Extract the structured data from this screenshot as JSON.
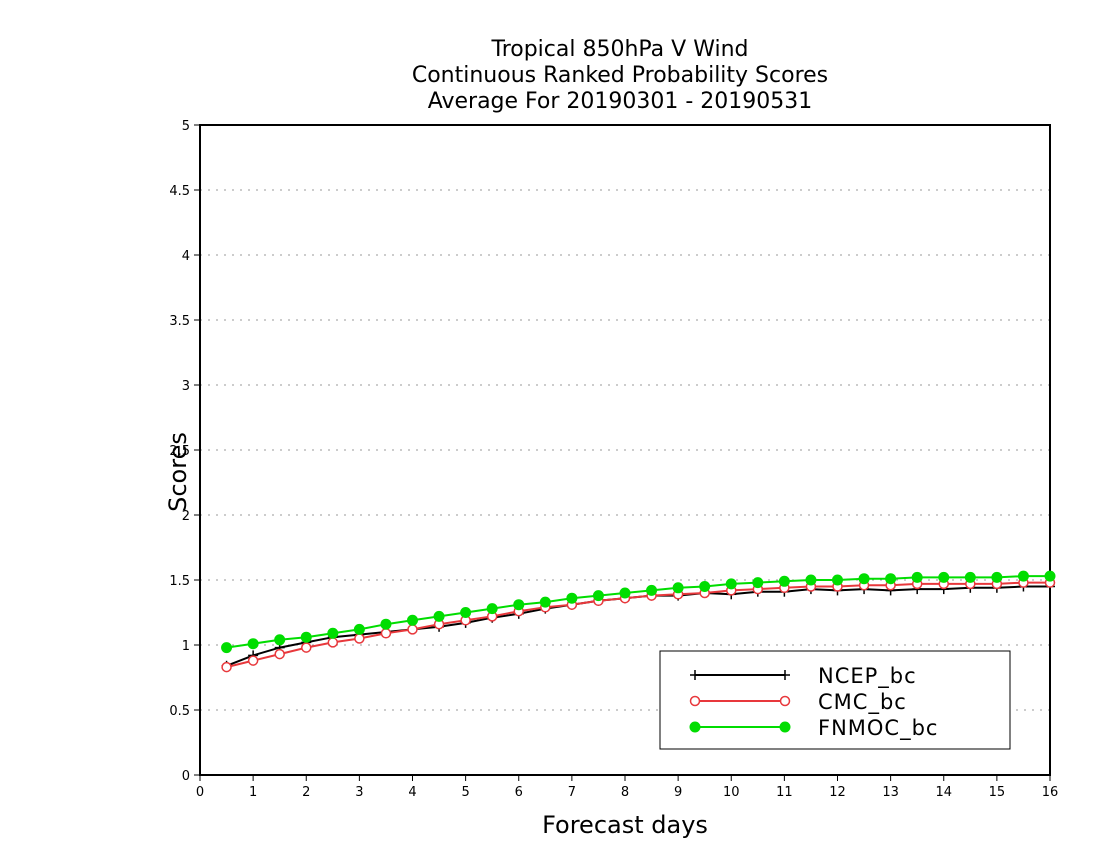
{
  "chart_data": {
    "type": "line",
    "title": [
      "Tropical 850hPa V Wind",
      "Continuous Ranked Probability Scores",
      "Average For 20190301 - 20190531"
    ],
    "xlabel": "Forecast days",
    "ylabel": "Scores",
    "xlim": [
      0,
      16
    ],
    "ylim": [
      0,
      5
    ],
    "xticks": [
      "0",
      "1",
      "2",
      "3",
      "4",
      "5",
      "6",
      "7",
      "8",
      "9",
      "10",
      "11",
      "12",
      "13",
      "14",
      "15",
      "16"
    ],
    "yticks": [
      "0",
      "0.5",
      "1",
      "1.5",
      "2",
      "2.5",
      "3",
      "3.5",
      "4",
      "4.5",
      "5"
    ],
    "grid": true,
    "legend_position": "bottom-right",
    "x": [
      0.5,
      1,
      1.5,
      2,
      2.5,
      3,
      3.5,
      4,
      4.5,
      5,
      5.5,
      6,
      6.5,
      7,
      7.5,
      8,
      8.5,
      9,
      9.5,
      10,
      10.5,
      11,
      11.5,
      12,
      12.5,
      13,
      13.5,
      14,
      14.5,
      15,
      15.5,
      16
    ],
    "series": [
      {
        "name": "NCEP_bc",
        "color": "#000000",
        "marker": "plus",
        "values": [
          0.84,
          0.92,
          0.98,
          1.02,
          1.06,
          1.08,
          1.1,
          1.12,
          1.14,
          1.17,
          1.21,
          1.24,
          1.28,
          1.31,
          1.34,
          1.36,
          1.38,
          1.38,
          1.4,
          1.39,
          1.41,
          1.41,
          1.43,
          1.42,
          1.43,
          1.42,
          1.43,
          1.43,
          1.44,
          1.44,
          1.45,
          1.45
        ]
      },
      {
        "name": "CMC_bc",
        "color": "#e8383c",
        "marker": "open-circle",
        "values": [
          0.83,
          0.88,
          0.93,
          0.98,
          1.02,
          1.05,
          1.09,
          1.12,
          1.16,
          1.19,
          1.22,
          1.26,
          1.29,
          1.31,
          1.34,
          1.36,
          1.38,
          1.39,
          1.4,
          1.42,
          1.43,
          1.44,
          1.45,
          1.45,
          1.46,
          1.46,
          1.47,
          1.47,
          1.47,
          1.47,
          1.48,
          1.48
        ]
      },
      {
        "name": "FNMOC_bc",
        "color": "#00dd00",
        "marker": "filled-circle",
        "values": [
          0.98,
          1.01,
          1.04,
          1.06,
          1.09,
          1.12,
          1.16,
          1.19,
          1.22,
          1.25,
          1.28,
          1.31,
          1.33,
          1.36,
          1.38,
          1.4,
          1.42,
          1.44,
          1.45,
          1.47,
          1.48,
          1.49,
          1.5,
          1.5,
          1.51,
          1.51,
          1.52,
          1.52,
          1.52,
          1.52,
          1.53,
          1.53
        ]
      }
    ]
  }
}
